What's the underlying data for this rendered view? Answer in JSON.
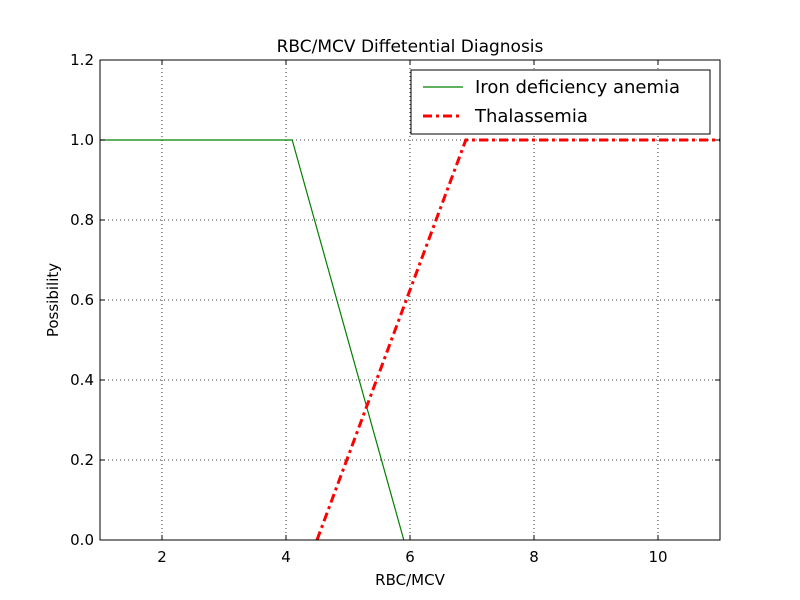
{
  "chart_data": {
    "type": "line",
    "title": "RBC/MCV Diffetential Diagnosis",
    "xlabel": "RBC/MCV",
    "ylabel": "Possibility",
    "xlim": [
      1,
      11
    ],
    "ylim": [
      0,
      1.2
    ],
    "xticks": [
      2,
      4,
      6,
      8,
      10
    ],
    "yticks": [
      0.0,
      0.2,
      0.4,
      0.6,
      0.8,
      1.0,
      1.2
    ],
    "xtick_labels": [
      "2",
      "4",
      "6",
      "8",
      "10"
    ],
    "ytick_labels": [
      "0.0",
      "0.2",
      "0.4",
      "0.6",
      "0.8",
      "1.0",
      "1.2"
    ],
    "grid": true,
    "legend_position": "top-right",
    "series": [
      {
        "name": "Iron deficiency anemia",
        "color": "#008000",
        "style": "solid",
        "x": [
          1.0,
          4.1,
          5.9
        ],
        "y": [
          1.0,
          1.0,
          0.0
        ]
      },
      {
        "name": "Thalassemia",
        "color": "#ff0000",
        "style": "dashdot",
        "x": [
          4.5,
          6.9,
          11.0
        ],
        "y": [
          0.0,
          1.0,
          1.0
        ]
      }
    ]
  }
}
